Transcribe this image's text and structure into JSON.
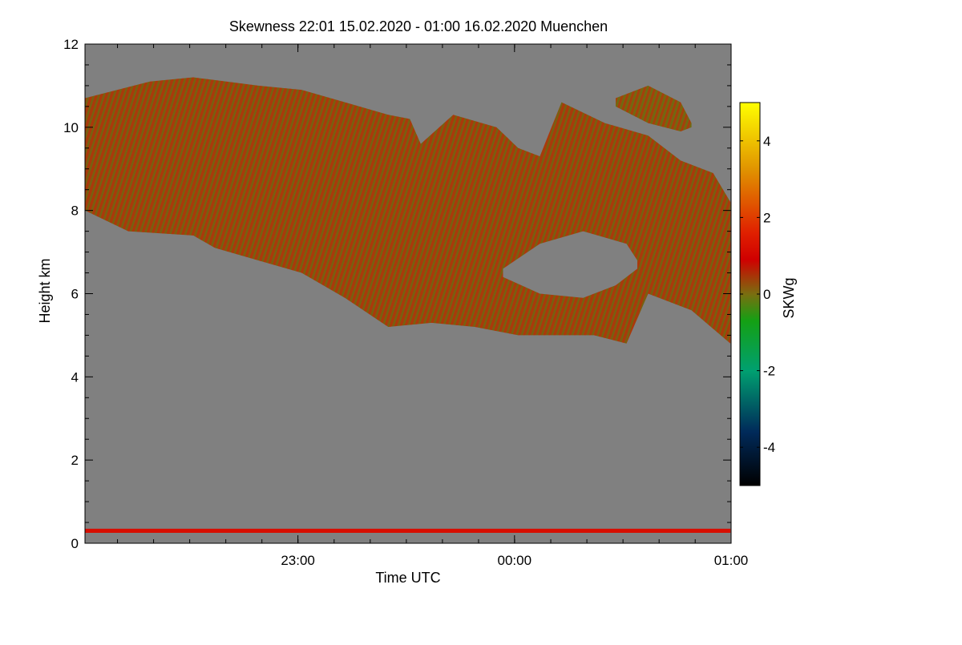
{
  "chart_data": {
    "type": "heatmap",
    "title": "Skewness   22:01 15.02.2020 - 01:00 16.02.2020 Muenchen",
    "xlabel": "Time UTC",
    "ylabel": "Height km",
    "xlim": [
      "22:01",
      "01:00"
    ],
    "ylim": [
      0,
      12
    ],
    "x_ticks": [
      "23:00",
      "00:00",
      "01:00"
    ],
    "x_tick_hours": [
      0.983,
      1.983,
      2.983
    ],
    "x_minor_every_hours": 0.1667,
    "y_ticks": [
      0,
      2,
      4,
      6,
      8,
      10,
      12
    ],
    "background_color": "#808080",
    "colorbar": {
      "label": "SKWg",
      "range": [
        -5,
        5
      ],
      "ticks": [
        -4,
        -2,
        0,
        2,
        4
      ],
      "stops": [
        {
          "v": -5,
          "c": "#000000"
        },
        {
          "v": -3.6,
          "c": "#002a5a"
        },
        {
          "v": -2,
          "c": "#00a070"
        },
        {
          "v": -0.7,
          "c": "#14a014"
        },
        {
          "v": 0,
          "c": "#7a6e10"
        },
        {
          "v": 0.9,
          "c": "#d00000"
        },
        {
          "v": 1.6,
          "c": "#e02000"
        },
        {
          "v": 3.2,
          "c": "#e09000"
        },
        {
          "v": 5,
          "c": "#ffff00"
        }
      ]
    },
    "regions": [
      {
        "name": "main cloud layer",
        "x_start_h": 0.0,
        "x_end_h": 2.98,
        "top_km": [
          [
            0.0,
            10.7
          ],
          [
            0.3,
            11.1
          ],
          [
            0.5,
            11.2
          ],
          [
            0.8,
            11.0
          ],
          [
            1.0,
            10.9
          ],
          [
            1.2,
            10.6
          ],
          [
            1.4,
            10.3
          ],
          [
            1.5,
            10.2
          ],
          [
            1.55,
            9.6
          ],
          [
            1.7,
            10.3
          ],
          [
            1.9,
            10.0
          ],
          [
            2.0,
            9.5
          ],
          [
            2.1,
            9.3
          ],
          [
            2.2,
            10.6
          ],
          [
            2.4,
            10.1
          ],
          [
            2.6,
            9.8
          ],
          [
            2.75,
            9.2
          ],
          [
            2.9,
            8.9
          ],
          [
            2.98,
            8.2
          ]
        ],
        "bottom_km": [
          [
            0.0,
            8.0
          ],
          [
            0.2,
            7.5
          ],
          [
            0.5,
            7.4
          ],
          [
            0.6,
            7.1
          ],
          [
            0.8,
            6.8
          ],
          [
            1.0,
            6.5
          ],
          [
            1.2,
            5.9
          ],
          [
            1.4,
            5.2
          ],
          [
            1.6,
            5.3
          ],
          [
            1.8,
            5.2
          ],
          [
            2.0,
            5.0
          ],
          [
            2.2,
            5.0
          ],
          [
            2.35,
            5.0
          ],
          [
            2.5,
            4.8
          ],
          [
            2.6,
            6.0
          ],
          [
            2.8,
            5.6
          ],
          [
            2.98,
            4.8
          ]
        ],
        "mean_skewness": 0.3
      },
      {
        "name": "clear gap",
        "x_start_h": 1.93,
        "x_end_h": 2.55,
        "top_km": [
          [
            1.93,
            6.6
          ],
          [
            2.1,
            7.2
          ],
          [
            2.3,
            7.5
          ],
          [
            2.5,
            7.2
          ],
          [
            2.55,
            6.8
          ]
        ],
        "bottom_km": [
          [
            1.93,
            6.4
          ],
          [
            2.1,
            6.0
          ],
          [
            2.3,
            5.9
          ],
          [
            2.45,
            6.2
          ],
          [
            2.55,
            6.6
          ]
        ],
        "mean_skewness": null
      },
      {
        "name": "upper fragment",
        "x_start_h": 2.45,
        "x_end_h": 2.8,
        "top_km": [
          [
            2.45,
            10.7
          ],
          [
            2.6,
            11.0
          ],
          [
            2.75,
            10.6
          ],
          [
            2.8,
            10.1
          ]
        ],
        "bottom_km": [
          [
            2.45,
            10.5
          ],
          [
            2.6,
            10.1
          ],
          [
            2.75,
            9.9
          ],
          [
            2.8,
            10.0
          ]
        ],
        "mean_skewness": 0.2
      },
      {
        "name": "near-surface layer",
        "x_start_h": 0.0,
        "x_end_h": 2.98,
        "top_km": [
          [
            0.0,
            0.35
          ],
          [
            2.98,
            0.35
          ]
        ],
        "bottom_km": [
          [
            0.0,
            0.25
          ],
          [
            2.98,
            0.25
          ]
        ],
        "mean_skewness": 1.2
      }
    ],
    "grid": false,
    "legend": "colorbar right"
  }
}
